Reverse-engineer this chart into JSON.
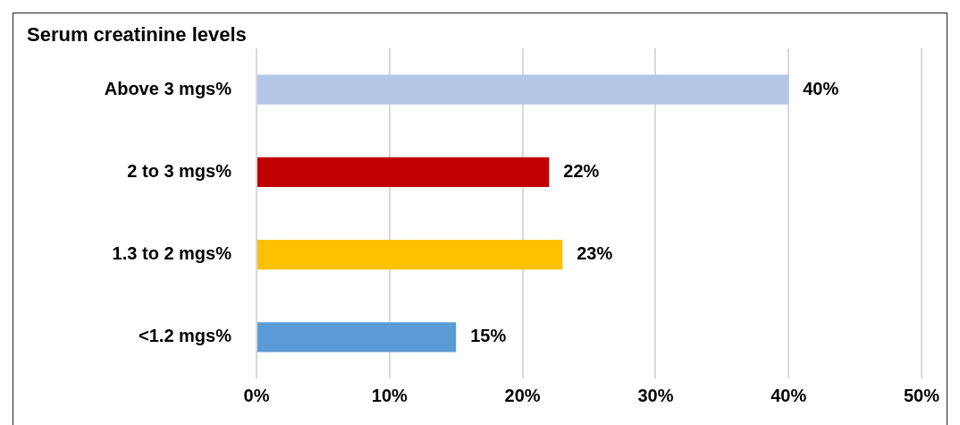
{
  "chart_data": {
    "type": "bar",
    "orientation": "horizontal",
    "title": "Serum creatinine levels",
    "categories": [
      "Above 3 mgs%",
      "2 to 3 mgs%",
      "1.3 to 2 mgs%",
      "<1.2 mgs%"
    ],
    "values": [
      40,
      22,
      23,
      15
    ],
    "colors": [
      "#b4c7e7",
      "#c00000",
      "#ffc000",
      "#5b9bd5"
    ],
    "value_labels": [
      "40%",
      "22%",
      "23%",
      "15%"
    ],
    "xlim": [
      0,
      50
    ],
    "xticks": [
      {
        "value": 0,
        "label": "0%"
      },
      {
        "value": 10,
        "label": "10%"
      },
      {
        "value": 20,
        "label": "20%"
      },
      {
        "value": 30,
        "label": "30%"
      },
      {
        "value": 40,
        "label": "40%"
      },
      {
        "value": 50,
        "label": "50%"
      }
    ],
    "grid": "x",
    "legend": false
  }
}
